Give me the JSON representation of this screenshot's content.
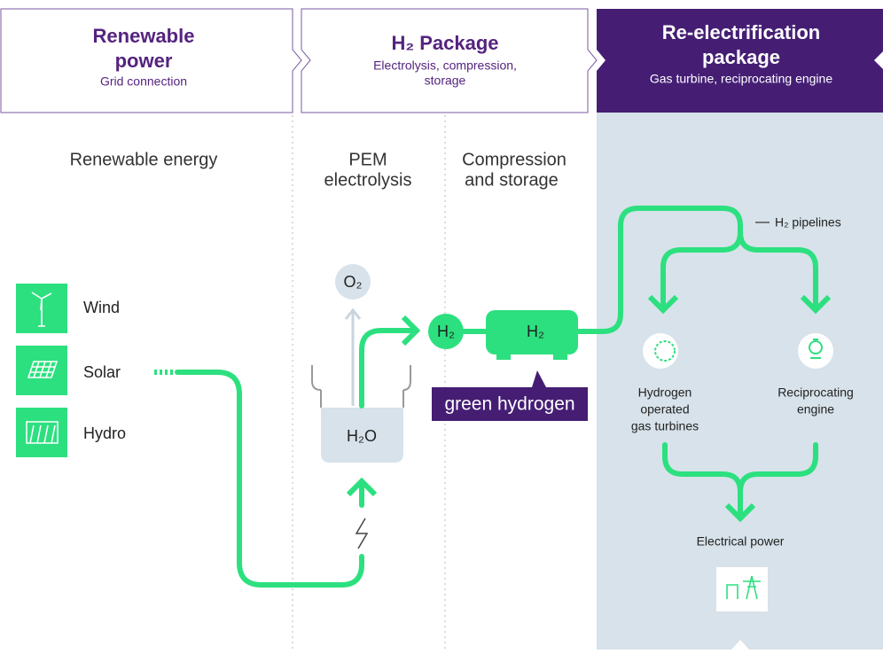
{
  "header": [
    {
      "title": [
        "Renewable",
        "power"
      ],
      "subtitle": [
        "Grid connection"
      ]
    },
    {
      "title": [
        "H₂ Package"
      ],
      "subtitle": [
        "Electrolysis, compression,",
        "storage"
      ]
    },
    {
      "title": [
        "Re-electrification",
        "package"
      ],
      "subtitle": [
        "Gas turbine, reciprocating engine"
      ]
    }
  ],
  "stages": [
    [
      "Renewable energy"
    ],
    [
      "PEM",
      "electrolysis"
    ],
    [
      "Compression",
      "and storage"
    ]
  ],
  "sources": [
    "Wind",
    "Solar",
    "Hydro"
  ],
  "oxygen": "O₂",
  "water": "H₂O",
  "hydrogen_node": "H₂",
  "tank": "H₂",
  "callout": "green hydrogen",
  "pipelines": "H₂ pipelines",
  "outputs": [
    [
      "Hydrogen",
      "operated",
      "gas turbines"
    ],
    [
      "Reciprocating",
      "engine"
    ]
  ],
  "result": "Electrical power"
}
